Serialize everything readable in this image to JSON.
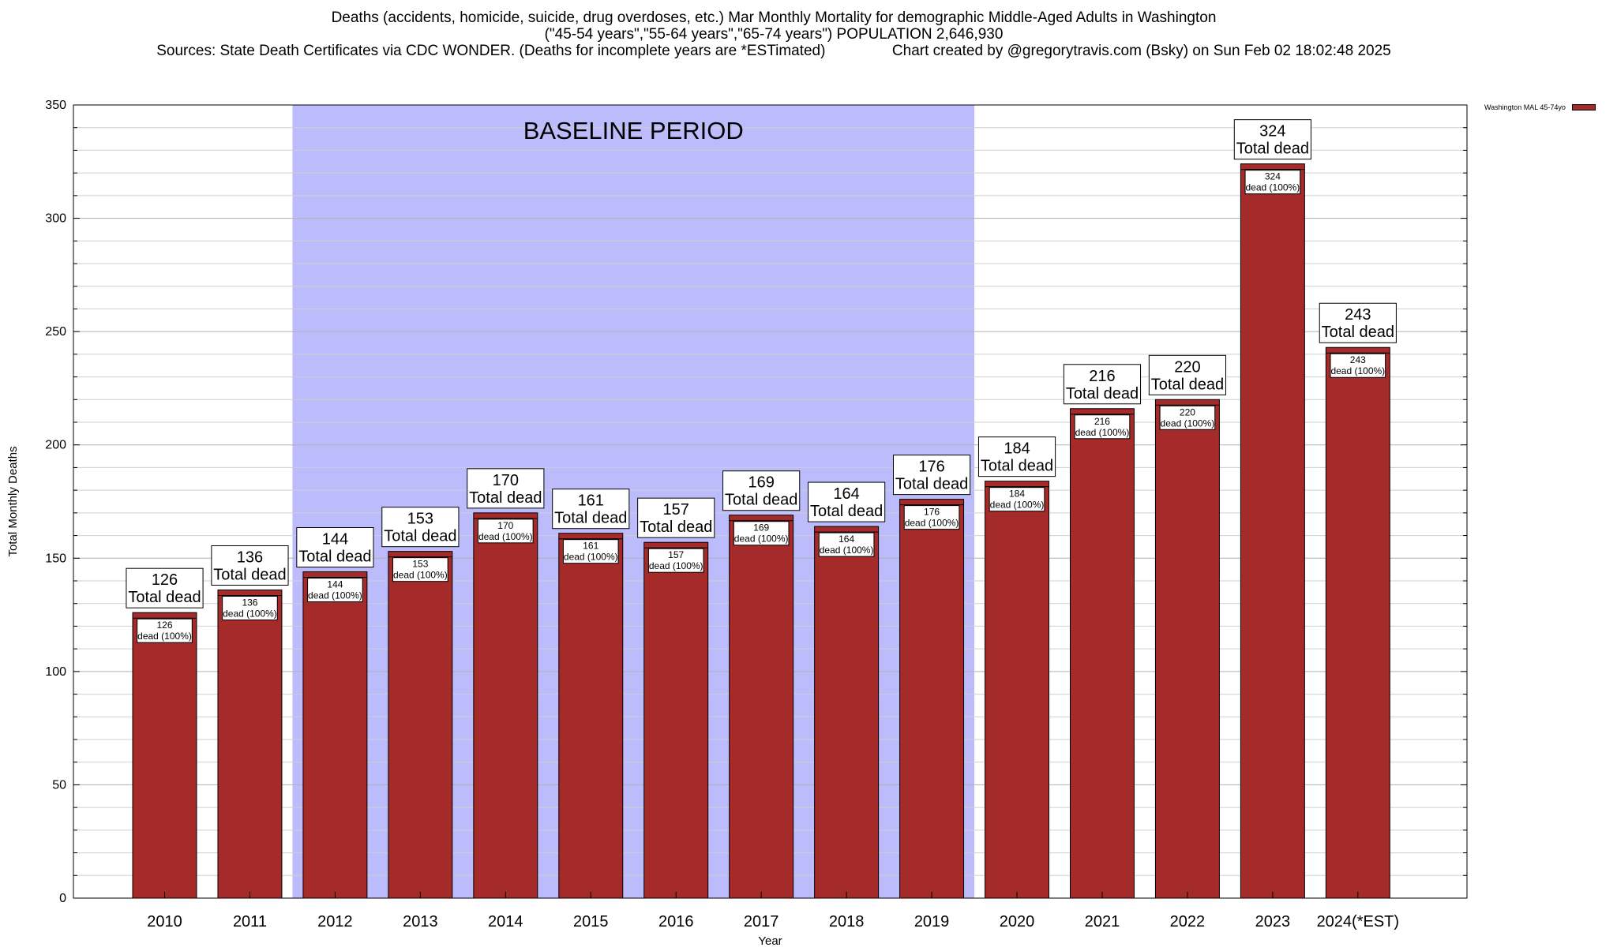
{
  "title": {
    "line1": "Deaths (accidents, homicide, suicide, drug overdoses, etc.) Mar Monthly Mortality for demographic Middle-Aged Adults in Washington",
    "line2": "(\"45-54 years\",\"55-64 years\",\"65-74 years\") POPULATION 2,646,930",
    "line3": "Sources: State Death Certificates via CDC WONDER. (Deaths for incomplete years are *ESTimated)                Chart created by @gregorytravis.com (Bsky) on Sun Feb 02 18:02:48 2025"
  },
  "legend": {
    "label": "Washington MAL 45-74yo",
    "color": "#a52a2a"
  },
  "chart_data": {
    "type": "bar",
    "xlabel": "Year",
    "ylabel": "Total Monthly Deaths",
    "ylim": [
      0,
      350
    ],
    "yticks": [
      0,
      50,
      100,
      150,
      200,
      250,
      300,
      350
    ],
    "grid": true,
    "legend_position": "top-right",
    "categories": [
      "2010",
      "2011",
      "2012",
      "2013",
      "2014",
      "2015",
      "2016",
      "2017",
      "2018",
      "2019",
      "2020",
      "2021",
      "2022",
      "2023",
      "2024(*EST)"
    ],
    "series": [
      {
        "name": "Washington MAL 45-74yo",
        "values": [
          126,
          136,
          144,
          153,
          170,
          161,
          157,
          169,
          164,
          176,
          184,
          216,
          220,
          324,
          243
        ],
        "color": "#a52a2a"
      }
    ],
    "top_label_suffix": "Total dead",
    "inner_label_suffix": "dead (100%)",
    "baseline": {
      "label": "BASELINE PERIOD",
      "start": "2012",
      "end": "2019",
      "color": "#bcbcfc"
    }
  }
}
